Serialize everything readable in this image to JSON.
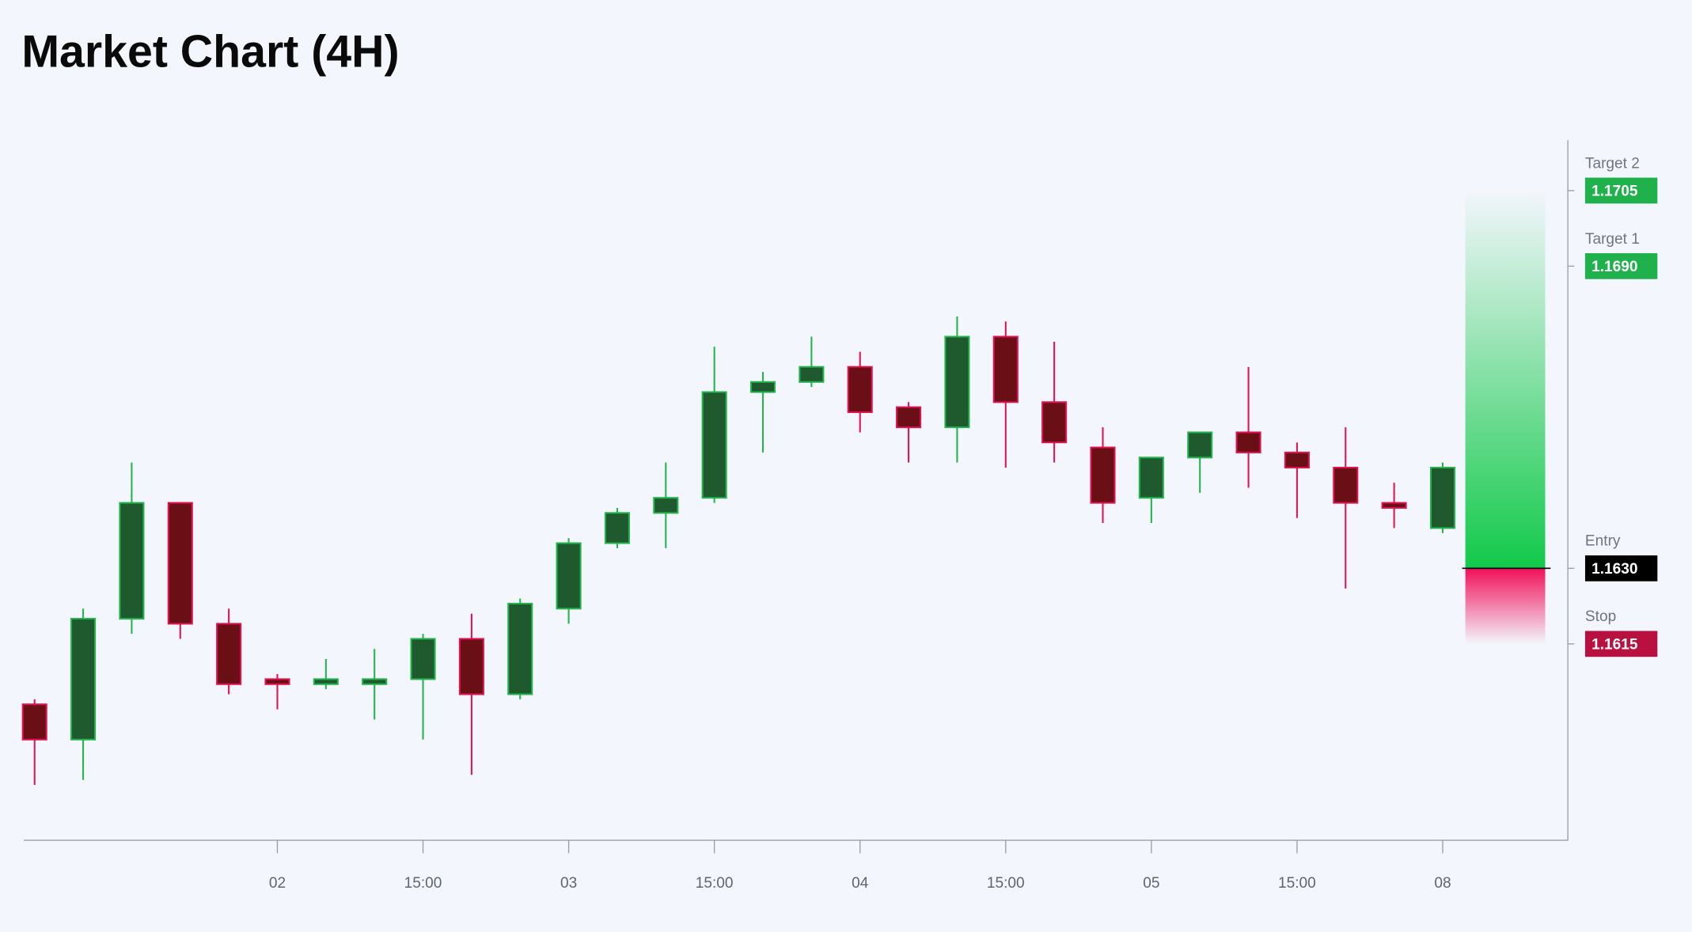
{
  "chart_data": {
    "type": "candlestick",
    "title": "Market Chart (4H)",
    "categories": [
      null,
      null,
      null,
      null,
      null,
      "02",
      null,
      null,
      "15:00",
      null,
      null,
      "03",
      null,
      null,
      "15:00",
      null,
      null,
      "04",
      null,
      null,
      "15:00",
      null,
      null,
      "05",
      null,
      null,
      "15:00",
      null,
      null,
      "08"
    ],
    "open": [
      1.1603,
      1.1596,
      1.162,
      1.1643,
      1.1619,
      1.1608,
      1.1607,
      1.1607,
      1.1608,
      1.1616,
      1.1605,
      1.1622,
      1.1635,
      1.1641,
      1.1644,
      1.1665,
      1.1667,
      1.167,
      1.1662,
      1.1658,
      1.1676,
      1.1663,
      1.1654,
      1.1644,
      1.1652,
      1.1657,
      1.1653,
      1.165,
      1.1643,
      1.1638
    ],
    "high": [
      1.1604,
      1.1622,
      1.1651,
      1.1643,
      1.1622,
      1.1609,
      1.1612,
      1.1614,
      1.1617,
      1.1621,
      1.1624,
      1.1636,
      1.1642,
      1.1651,
      1.1674,
      1.1669,
      1.1676,
      1.1673,
      1.1663,
      1.168,
      1.1679,
      1.1675,
      1.1658,
      1.1652,
      1.1657,
      1.167,
      1.1655,
      1.1658,
      1.1647,
      1.1651
    ],
    "low": [
      1.1587,
      1.1588,
      1.1617,
      1.1616,
      1.1605,
      1.1602,
      1.1606,
      1.16,
      1.1596,
      1.1589,
      1.1604,
      1.1619,
      1.1634,
      1.1634,
      1.1643,
      1.1653,
      1.1666,
      1.1657,
      1.1651,
      1.1651,
      1.165,
      1.1651,
      1.1639,
      1.1639,
      1.1645,
      1.1646,
      1.164,
      1.1626,
      1.1638,
      1.1637
    ],
    "close": [
      1.1596,
      1.162,
      1.1643,
      1.1619,
      1.1607,
      1.1607,
      1.1608,
      1.1608,
      1.1616,
      1.1605,
      1.1623,
      1.1635,
      1.1641,
      1.1644,
      1.1665,
      1.1667,
      1.167,
      1.1661,
      1.1658,
      1.1676,
      1.1663,
      1.1655,
      1.1643,
      1.1652,
      1.1657,
      1.1653,
      1.165,
      1.1643,
      1.1642,
      1.165
    ],
    "up_color": "#22b34a",
    "up_fill": "#1f5a2e",
    "down_color": "#e0124f",
    "down_fill": "#6b0f17",
    "ylim": [
      1.1576,
      1.1715
    ],
    "levels": [
      {
        "label": "Target 2",
        "value": 1.1705,
        "value_label": "1.1705",
        "color": "#1fb14c"
      },
      {
        "label": "Target 1",
        "value": 1.169,
        "value_label": "1.1690",
        "color": "#1fb14c"
      },
      {
        "label": "Entry",
        "value": 1.163,
        "value_label": "1.1630",
        "color": "#000000"
      },
      {
        "label": "Stop",
        "value": 1.1615,
        "value_label": "1.1615",
        "color": "#b8103f"
      }
    ]
  }
}
